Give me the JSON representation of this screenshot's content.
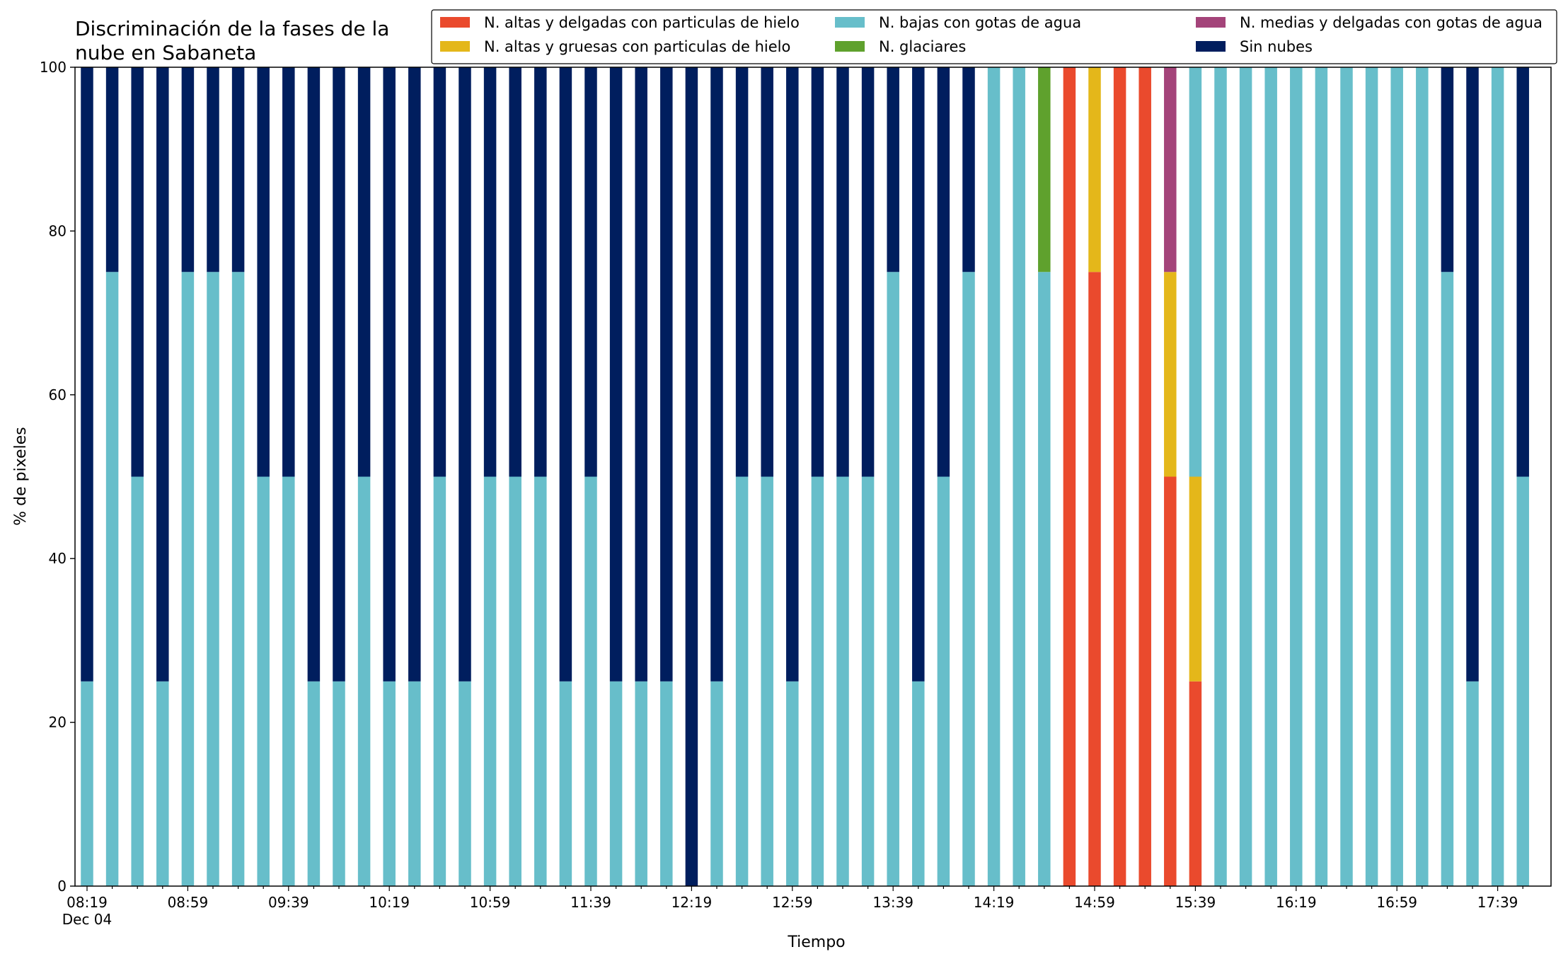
{
  "chart_data": {
    "type": "bar",
    "stacked": true,
    "title_lines": [
      "Discriminación de la fases de la",
      "nube en Sabaneta"
    ],
    "xlabel": "Tiempo",
    "ylabel": "% de pixeles",
    "ylim": [
      0,
      100
    ],
    "y_ticks": [
      0,
      20,
      40,
      60,
      80,
      100
    ],
    "x_tick_labels": [
      {
        "index": 0,
        "label": "08:19",
        "sublabel": "Dec 04"
      },
      {
        "index": 4,
        "label": "08:59"
      },
      {
        "index": 8,
        "label": "09:39"
      },
      {
        "index": 12,
        "label": "10:19"
      },
      {
        "index": 16,
        "label": "10:59"
      },
      {
        "index": 20,
        "label": "11:39"
      },
      {
        "index": 24,
        "label": "12:19"
      },
      {
        "index": 28,
        "label": "12:59"
      },
      {
        "index": 32,
        "label": "13:39"
      },
      {
        "index": 36,
        "label": "14:19"
      },
      {
        "index": 40,
        "label": "14:59"
      },
      {
        "index": 44,
        "label": "15:39"
      },
      {
        "index": 48,
        "label": "16:19"
      },
      {
        "index": 52,
        "label": "16:59"
      },
      {
        "index": 56,
        "label": "17:39"
      }
    ],
    "categories": [
      "08:19",
      "08:29",
      "08:39",
      "08:49",
      "08:59",
      "09:09",
      "09:19",
      "09:29",
      "09:39",
      "09:49",
      "09:59",
      "10:09",
      "10:19",
      "10:29",
      "10:39",
      "10:49",
      "10:59",
      "11:09",
      "11:19",
      "11:29",
      "11:39",
      "11:49",
      "11:59",
      "12:09",
      "12:19",
      "12:29",
      "12:39",
      "12:49",
      "12:59",
      "13:09",
      "13:19",
      "13:29",
      "13:39",
      "13:49",
      "13:59",
      "14:09",
      "14:19",
      "14:29",
      "14:39",
      "14:49",
      "14:59",
      "15:09",
      "15:19",
      "15:29",
      "15:39",
      "15:49",
      "15:59",
      "16:09",
      "16:19",
      "16:29",
      "16:39",
      "16:49",
      "16:59",
      "17:09",
      "17:19",
      "17:29",
      "17:39",
      "17:49"
    ],
    "legend_position": "top-right",
    "series": [
      {
        "name": "N. altas y delgadas con particulas de hielo",
        "color": "#EA4A2D",
        "values": [
          0,
          0,
          0,
          0,
          0,
          0,
          0,
          0,
          0,
          0,
          0,
          0,
          0,
          0,
          0,
          0,
          0,
          0,
          0,
          0,
          0,
          0,
          0,
          0,
          0,
          0,
          0,
          0,
          0,
          0,
          0,
          0,
          0,
          0,
          0,
          0,
          0,
          0,
          0,
          100,
          75,
          100,
          100,
          50,
          25,
          0,
          0,
          0,
          0,
          0,
          0,
          0,
          0,
          0,
          0,
          0,
          0,
          0
        ]
      },
      {
        "name": "N. altas y gruesas con particulas de hielo",
        "color": "#E4B71A",
        "values": [
          0,
          0,
          0,
          0,
          0,
          0,
          0,
          0,
          0,
          0,
          0,
          0,
          0,
          0,
          0,
          0,
          0,
          0,
          0,
          0,
          0,
          0,
          0,
          0,
          0,
          0,
          0,
          0,
          0,
          0,
          0,
          0,
          0,
          0,
          0,
          0,
          0,
          0,
          0,
          0,
          25,
          0,
          0,
          25,
          25,
          0,
          0,
          0,
          0,
          0,
          0,
          0,
          0,
          0,
          0,
          0,
          0,
          0
        ]
      },
      {
        "name": "N. bajas con gotas de agua",
        "color": "#67BECA",
        "values": [
          25,
          75,
          50,
          25,
          75,
          75,
          75,
          50,
          50,
          25,
          25,
          50,
          25,
          25,
          50,
          25,
          50,
          50,
          50,
          25,
          50,
          25,
          25,
          25,
          0,
          25,
          50,
          50,
          25,
          50,
          50,
          50,
          75,
          25,
          50,
          75,
          100,
          100,
          75,
          0,
          0,
          0,
          0,
          0,
          50,
          100,
          100,
          100,
          100,
          100,
          100,
          100,
          100,
          100,
          75,
          25,
          100,
          50
        ]
      },
      {
        "name": "N. glaciares",
        "color": "#5FA12D",
        "values": [
          0,
          0,
          0,
          0,
          0,
          0,
          0,
          0,
          0,
          0,
          0,
          0,
          0,
          0,
          0,
          0,
          0,
          0,
          0,
          0,
          0,
          0,
          0,
          0,
          0,
          0,
          0,
          0,
          0,
          0,
          0,
          0,
          0,
          0,
          0,
          0,
          0,
          0,
          25,
          0,
          0,
          0,
          0,
          0,
          0,
          0,
          0,
          0,
          0,
          0,
          0,
          0,
          0,
          0,
          0,
          0,
          0,
          0
        ]
      },
      {
        "name": "N. medias y delgadas con gotas de agua",
        "color": "#A4447A",
        "values": [
          0,
          0,
          0,
          0,
          0,
          0,
          0,
          0,
          0,
          0,
          0,
          0,
          0,
          0,
          0,
          0,
          0,
          0,
          0,
          0,
          0,
          0,
          0,
          0,
          0,
          0,
          0,
          0,
          0,
          0,
          0,
          0,
          0,
          0,
          0,
          0,
          0,
          0,
          0,
          0,
          0,
          0,
          0,
          25,
          0,
          0,
          0,
          0,
          0,
          0,
          0,
          0,
          0,
          0,
          0,
          0,
          0,
          0
        ]
      },
      {
        "name": "Sin nubes",
        "color": "#001E5E",
        "values": [
          75,
          25,
          50,
          75,
          25,
          25,
          25,
          50,
          50,
          75,
          75,
          50,
          75,
          75,
          50,
          75,
          50,
          50,
          50,
          75,
          50,
          75,
          75,
          75,
          100,
          75,
          50,
          50,
          75,
          50,
          50,
          50,
          25,
          75,
          50,
          25,
          0,
          0,
          0,
          0,
          0,
          0,
          0,
          0,
          0,
          0,
          0,
          0,
          0,
          0,
          0,
          0,
          0,
          0,
          25,
          75,
          0,
          50
        ]
      }
    ]
  }
}
